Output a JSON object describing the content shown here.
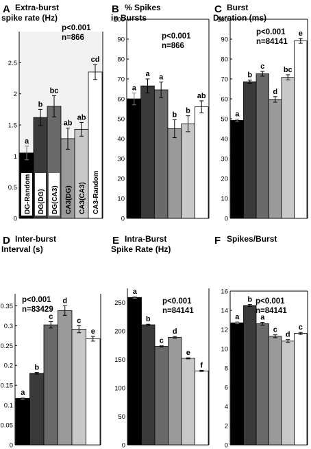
{
  "category_colors": [
    "#000000",
    "#3a3a3a",
    "#6a6a6a",
    "#9a9a9a",
    "#c8c8c8",
    "#ffffff"
  ],
  "chart_data": [
    {
      "panel": "A",
      "type": "bar",
      "title": [
        "Extra-burst",
        "spike rate (Hz)"
      ],
      "stat": "p<0.001",
      "n": "n=866",
      "categories": [
        "DG-Random",
        "DG(DG)",
        "DG(CA3)",
        "CA3(DG)",
        "CA3(CA3)",
        "CA3-Random"
      ],
      "values": [
        1.05,
        1.62,
        1.8,
        1.28,
        1.43,
        2.35
      ],
      "errors": [
        0.11,
        0.13,
        0.17,
        0.17,
        0.11,
        0.12
      ],
      "letters": [
        "a",
        "b",
        "bc",
        "ab",
        "ab",
        "cd"
      ],
      "ylim": [
        0,
        3
      ],
      "yticks": [
        "0",
        "0.5",
        "1",
        "1.5",
        "2",
        "2.5"
      ],
      "ytick_values": [
        0,
        0.5,
        1,
        1.5,
        2,
        2.5
      ],
      "top_open": true
    },
    {
      "panel": "B",
      "type": "bar",
      "title": [
        "% Spikes",
        "in Bursts"
      ],
      "stat": "p<0.001",
      "n": "n=866",
      "values": [
        60,
        66.5,
        64.5,
        45,
        47.5,
        56
      ],
      "errors": [
        3,
        3.5,
        4,
        4.5,
        4,
        3
      ],
      "letters": [
        "a",
        "a",
        "a",
        "b",
        "b",
        "ab"
      ],
      "ylim": [
        0,
        100
      ],
      "yticks": [
        "0",
        "10",
        "20",
        "30",
        "40",
        "50",
        "60",
        "70",
        "80",
        "90",
        "100"
      ],
      "ytick_values": [
        0,
        10,
        20,
        30,
        40,
        50,
        60,
        70,
        80,
        90,
        100
      ]
    },
    {
      "panel": "C",
      "type": "bar",
      "title": [
        "Burst",
        "Duration (ms)"
      ],
      "stat": "p<0.001",
      "n": "n=84141",
      "values": [
        49.2,
        68.6,
        72.6,
        59.7,
        70.8,
        89.1
      ],
      "errors": [
        0.6,
        0.8,
        1.2,
        1.4,
        1.3,
        1.2
      ],
      "letters": [
        "a",
        "b",
        "c",
        "d",
        "bc",
        "e"
      ],
      "ylim": [
        0,
        100
      ],
      "yticks": [
        "0",
        "10",
        "20",
        "30",
        "40",
        "50",
        "60",
        "70",
        "80",
        "90",
        "100"
      ],
      "ytick_values": [
        0,
        10,
        20,
        30,
        40,
        50,
        60,
        70,
        80,
        90,
        100
      ]
    },
    {
      "panel": "D",
      "type": "bar",
      "title": [
        "Inter-burst",
        "Interval (s)"
      ],
      "stat": "p<0.001",
      "n": "n=83429",
      "values": [
        0.117,
        0.18,
        0.302,
        0.338,
        0.291,
        0.267
      ],
      "errors": [
        0.002,
        0.002,
        0.008,
        0.012,
        0.009,
        0.006
      ],
      "letters": [
        "a",
        "b",
        "c",
        "d",
        "c",
        "e"
      ],
      "ylim": [
        0,
        0.38
      ],
      "yticks": [
        "0",
        "0.05",
        "0.1",
        "0.15",
        "0.2",
        "0.25",
        "0.3",
        "0.35"
      ],
      "ytick_values": [
        0,
        0.05,
        0.1,
        0.15,
        0.2,
        0.25,
        0.3,
        0.35
      ],
      "top_open": true
    },
    {
      "panel": "E",
      "type": "bar",
      "title": [
        "Intra-Burst",
        "Spike Rate (Hz)"
      ],
      "stat": "p<0.001",
      "n": "n=84141",
      "values": [
        259,
        211,
        173,
        189,
        152,
        130
      ],
      "errors": [
        1.5,
        1,
        1,
        1.5,
        1,
        1
      ],
      "letters": [
        "a",
        "b",
        "c",
        "d",
        "e",
        "f"
      ],
      "ylim": [
        0,
        275
      ],
      "yticks": [
        "0",
        "50",
        "100",
        "150",
        "200",
        "250"
      ],
      "ytick_values": [
        0,
        50,
        100,
        150,
        200,
        250
      ],
      "top_open": true
    },
    {
      "panel": "F",
      "type": "bar",
      "title": [
        "Spikes/Burst",
        ""
      ],
      "stat": "p<0.001",
      "n": "n=84141",
      "values": [
        12.7,
        14.5,
        12.6,
        11.3,
        10.8,
        11.6
      ],
      "errors": [
        0.1,
        0.1,
        0.15,
        0.15,
        0.15,
        0.1
      ],
      "letters": [
        "a",
        "b",
        "a",
        "c",
        "d",
        "c"
      ],
      "ylim": [
        0,
        16
      ],
      "yticks": [
        "0",
        "2",
        "4",
        "6",
        "8",
        "10",
        "12",
        "14",
        "16"
      ],
      "ytick_values": [
        0,
        2,
        4,
        6,
        8,
        10,
        12,
        14,
        16
      ]
    }
  ]
}
